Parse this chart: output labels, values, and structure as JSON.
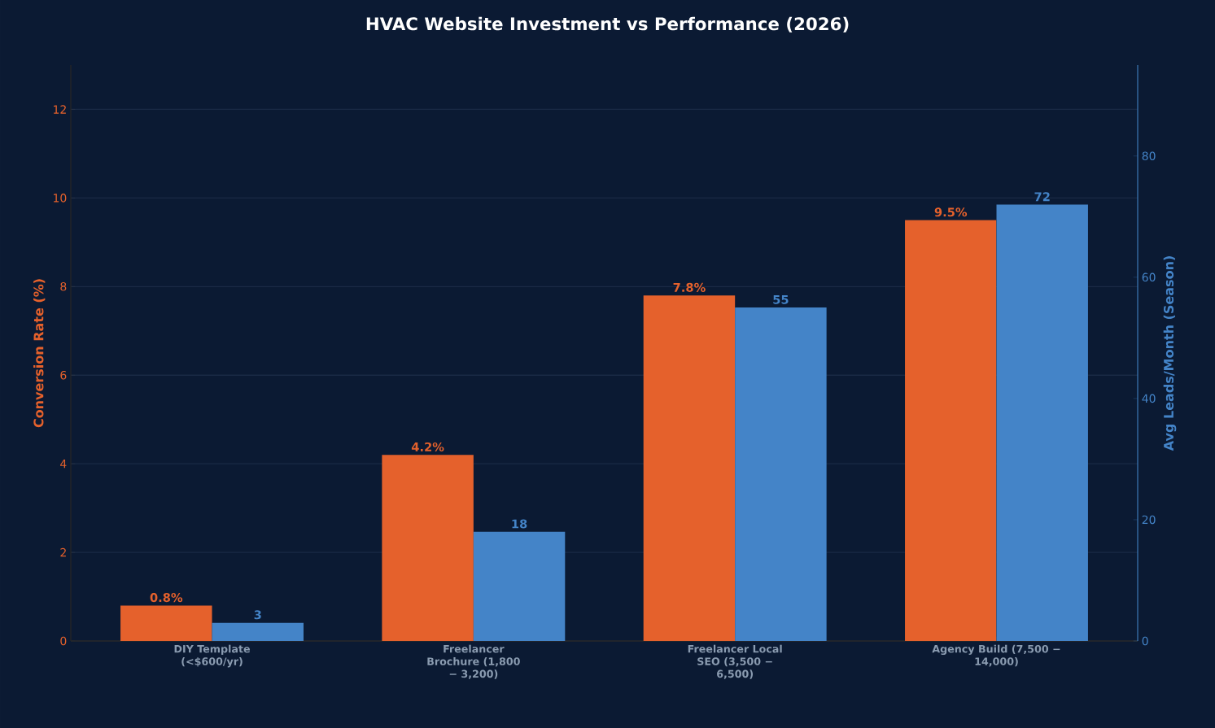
{
  "chart_data": {
    "type": "bar",
    "title": "HVAC Website Investment vs Performance (2026)",
    "categories": [
      "DIY Template (<$600/yr)",
      "Freelancer Brochure (1,800 − 3,200)",
      "Freelancer Local SEO (3,500 − 6,500)",
      "Agency Build (7,500 − 14,000)"
    ],
    "series": [
      {
        "color": "#e5612c",
        "values": [
          0.8,
          4.2,
          7.8,
          9.5
        ],
        "value_labels": [
          "0.8%",
          "4.2%",
          "7.8%",
          "9.5%"
        ]
      },
      {
        "color": "#4484c8",
        "axis": "y2",
        "values": [
          3,
          18,
          55,
          72
        ],
        "value_labels": [
          "3",
          "18",
          "55",
          "72"
        ]
      }
    ],
    "ylabel": "Conversion Rate (%)",
    "y2label": "Avg Leads/Month (Season)",
    "ylim": [
      0,
      13
    ],
    "yticks": [
      0,
      2,
      4,
      6,
      8,
      10,
      12
    ],
    "y2lim": [
      0,
      95
    ],
    "y2ticks": [
      0,
      20,
      40,
      60,
      80
    ],
    "grid": "y"
  }
}
